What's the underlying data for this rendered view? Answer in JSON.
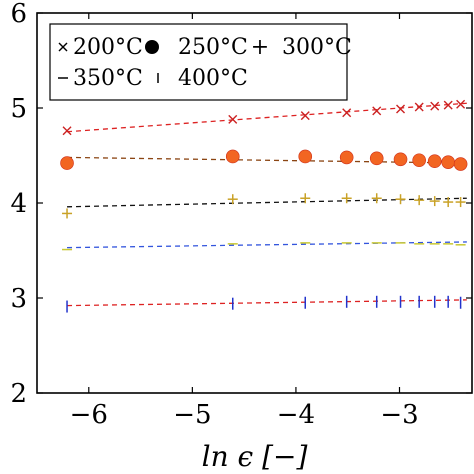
{
  "chart_data": {
    "type": "scatter",
    "title": "",
    "xlabel": "ln ϵ [−]",
    "ylabel": "",
    "xlim": [
      -6.5,
      -2.3
    ],
    "ylim": [
      2,
      6
    ],
    "xticks": [
      "−6",
      "−5",
      "−4",
      "−3"
    ],
    "yticks": [
      "2",
      "3",
      "4",
      "5",
      "6"
    ],
    "xtick_values": [
      -6,
      -5,
      -4,
      -3
    ],
    "ytick_values": [
      2,
      3,
      4,
      5,
      6
    ],
    "grid": false,
    "legend_position": "top-left",
    "legend_entries": [
      {
        "series": 0,
        "label": "200°C"
      },
      {
        "series": 1,
        "label": "250°C"
      },
      {
        "series": 2,
        "label": "300°C"
      },
      {
        "series": 3,
        "label": "350°C"
      },
      {
        "series": 4,
        "label": "400°C"
      }
    ],
    "series": [
      {
        "name": "200°C",
        "marker": "x",
        "color": "#cc2222",
        "fit_color": "#dd2222",
        "x": [
          -6.21,
          -4.61,
          -3.91,
          -3.51,
          -3.22,
          -2.99,
          -2.81,
          -2.66,
          -2.53,
          -2.41
        ],
        "y": [
          4.76,
          4.88,
          4.92,
          4.95,
          4.97,
          4.99,
          5.01,
          5.02,
          5.03,
          5.04
        ],
        "fit": [
          -6.21,
          4.75,
          -2.35,
          5.05
        ]
      },
      {
        "name": "250°C",
        "marker": "circle",
        "color": "#f26522",
        "fit_color": "#8b4513",
        "x": [
          -6.21,
          -4.61,
          -3.91,
          -3.51,
          -3.22,
          -2.99,
          -2.81,
          -2.66,
          -2.53,
          -2.41
        ],
        "y": [
          4.42,
          4.49,
          4.49,
          4.48,
          4.47,
          4.46,
          4.45,
          4.44,
          4.43,
          4.41
        ],
        "fit": [
          -6.21,
          4.48,
          -2.35,
          4.42
        ]
      },
      {
        "name": "300°C",
        "marker": "plus",
        "color": "#c9a227",
        "fit_color": "#111111",
        "x": [
          -6.21,
          -4.61,
          -3.91,
          -3.51,
          -3.22,
          -2.99,
          -2.81,
          -2.66,
          -2.53,
          -2.41
        ],
        "y": [
          3.89,
          4.04,
          4.05,
          4.05,
          4.05,
          4.04,
          4.03,
          4.02,
          4.01,
          4.01
        ],
        "fit": [
          -6.21,
          3.96,
          -2.35,
          4.05
        ]
      },
      {
        "name": "350°C",
        "marker": "dash",
        "color": "#c8c832",
        "fit_color": "#3355dd",
        "x": [
          -6.21,
          -4.61,
          -3.91,
          -3.51,
          -3.22,
          -2.99,
          -2.81,
          -2.66,
          -2.53,
          -2.41
        ],
        "y": [
          3.51,
          3.57,
          3.58,
          3.58,
          3.58,
          3.58,
          3.57,
          3.57,
          3.57,
          3.56
        ],
        "fit": [
          -6.21,
          3.53,
          -2.35,
          3.59
        ]
      },
      {
        "name": "400°C",
        "marker": "vbar",
        "color": "#2233cc",
        "fit_color": "#dd2222",
        "x": [
          -6.21,
          -4.61,
          -3.91,
          -3.51,
          -3.22,
          -2.99,
          -2.81,
          -2.66,
          -2.53,
          -2.41
        ],
        "y": [
          2.91,
          2.94,
          2.95,
          2.96,
          2.96,
          2.96,
          2.96,
          2.96,
          2.96,
          2.95
        ],
        "fit": [
          -6.21,
          2.92,
          -2.35,
          2.98
        ]
      }
    ]
  }
}
